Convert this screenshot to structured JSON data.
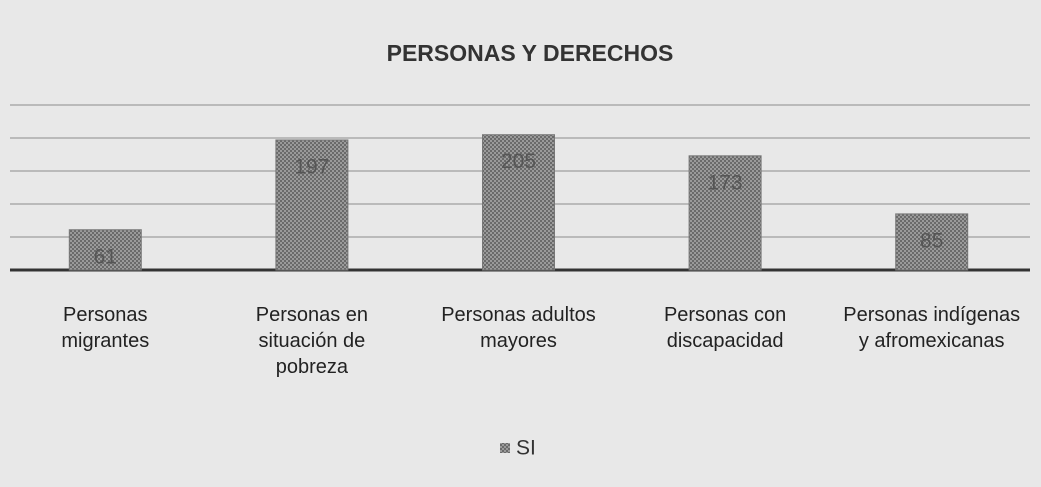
{
  "chart_data": {
    "type": "bar",
    "title": "PERSONAS Y DERECHOS",
    "categories": [
      "Personas migrantes",
      "Personas en situación de pobreza",
      "Personas adultos mayores",
      "Personas con discapacidad",
      "Personas indígenas y afromexicanas"
    ],
    "series": [
      {
        "name": "SI",
        "color": "#8a8a8a",
        "values": [
          61,
          197,
          205,
          173,
          85
        ]
      }
    ],
    "ylim": [
      0,
      250
    ],
    "yticks": [
      0,
      50,
      100,
      150,
      200,
      250
    ],
    "grid": true,
    "legend": "bottom"
  }
}
